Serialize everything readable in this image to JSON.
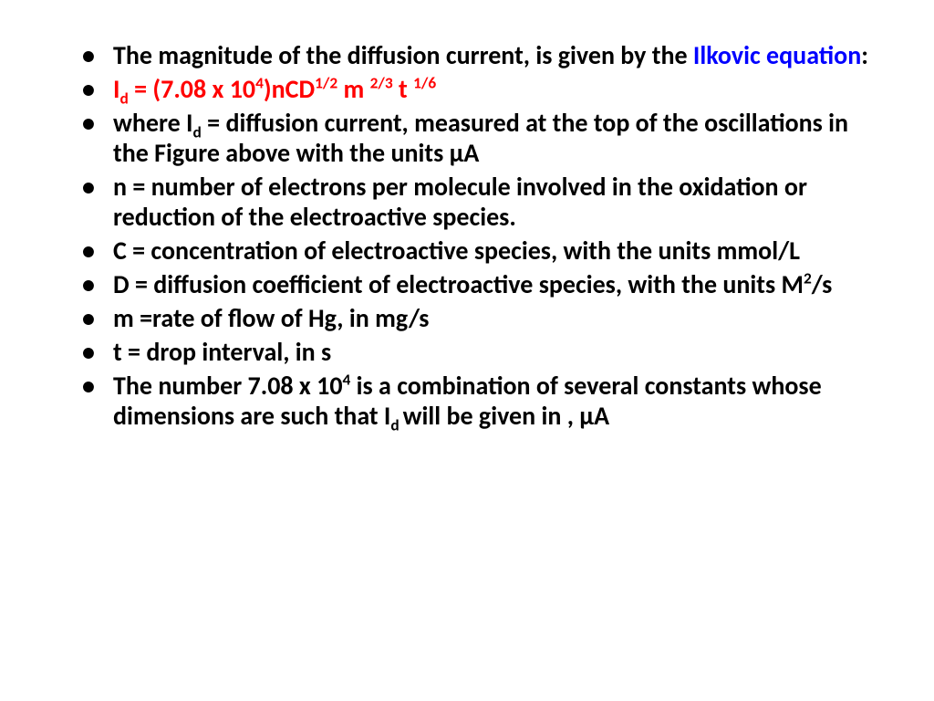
{
  "colors": {
    "text": "#000000",
    "highlight_blue": "#0000ff",
    "highlight_red": "#ff0000",
    "background": "#ffffff"
  },
  "typography": {
    "font_family": "Calibri, Arial, sans-serif",
    "font_size_pt": 21,
    "font_weight": 700,
    "line_height": 1.18
  },
  "bullets": {
    "b1": {
      "pre": "The magnitude of the diffusion current, is given by the ",
      "blue": "Ilkovic equation",
      "post": ":"
    },
    "b2": {
      "p1": "I",
      "sub1": "d",
      "p2": " = (7.08 x 10",
      "sup1": "4",
      "p3": ")nCD",
      "sup2": "1/2",
      "p4": " m ",
      "sup3": "2/3",
      "p5": " t ",
      "sup4": "1/6"
    },
    "b3": {
      "p1": "where I",
      "sub1": "d",
      "p2": " = diffusion current, measured at the top of the oscillations in the Figure above with the units µA"
    },
    "b4": "n = number of electrons per molecule involved in the oxidation or reduction of the electroactive species.",
    "b5": "C = concentration of electroactive species, with the units mmol/L",
    "b6": {
      "p1": "D = diffusion coefficient of electroactive species, with the units M",
      "sup1": "2",
      "p2": "/s"
    },
    "b7": "m =rate of flow of Hg, in mg/s",
    "b8": "t = drop interval, in s",
    "b9": {
      "p1": "The number 7.08 x 10",
      "sup1": "4",
      "p2": " is a combination of several constants whose dimensions are such that I",
      "sub1": "d ",
      "p3": "will be given in , µA"
    }
  }
}
